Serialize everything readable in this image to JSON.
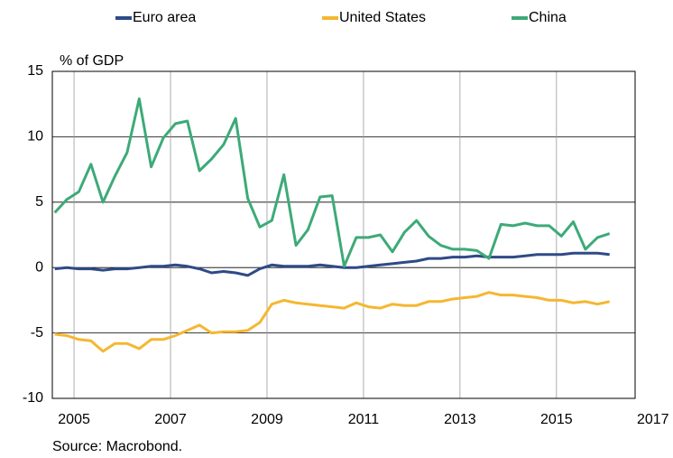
{
  "chart_data": {
    "type": "line",
    "y_label": "% of GDP",
    "source": "Source: Macrobond.",
    "x": [
      2004.6,
      2004.85,
      2005.1,
      2005.35,
      2005.6,
      2005.85,
      2006.1,
      2006.35,
      2006.6,
      2006.85,
      2007.1,
      2007.35,
      2007.6,
      2007.85,
      2008.1,
      2008.35,
      2008.6,
      2008.85,
      2009.1,
      2009.35,
      2009.6,
      2009.85,
      2010.1,
      2010.35,
      2010.6,
      2010.85,
      2011.1,
      2011.35,
      2011.6,
      2011.85,
      2012.1,
      2012.35,
      2012.6,
      2012.85,
      2013.1,
      2013.35,
      2013.6,
      2013.85,
      2014.1,
      2014.35,
      2014.6,
      2014.85,
      2015.1,
      2015.35,
      2015.6,
      2015.85,
      2016.1
    ],
    "series": [
      {
        "name": "Euro area",
        "color": "#2e4a87",
        "values": [
          -0.1,
          0.0,
          -0.1,
          -0.1,
          -0.2,
          -0.1,
          -0.1,
          0.0,
          0.1,
          0.1,
          0.2,
          0.1,
          -0.1,
          -0.4,
          -0.3,
          -0.4,
          -0.6,
          -0.1,
          0.2,
          0.1,
          0.1,
          0.1,
          0.2,
          0.1,
          0.0,
          0.0,
          0.1,
          0.2,
          0.3,
          0.4,
          0.5,
          0.7,
          0.7,
          0.8,
          0.8,
          0.9,
          0.8,
          0.8,
          0.8,
          0.9,
          1.0,
          1.0,
          1.0,
          1.1,
          1.1,
          1.1,
          1.0
        ]
      },
      {
        "name": "United States",
        "color": "#f5b731",
        "values": [
          -5.1,
          -5.2,
          -5.5,
          -5.6,
          -6.4,
          -5.8,
          -5.8,
          -6.2,
          -5.5,
          -5.5,
          -5.2,
          -4.8,
          -4.4,
          -5.0,
          -4.9,
          -4.9,
          -4.8,
          -4.2,
          -2.8,
          -2.5,
          -2.7,
          -2.8,
          -2.9,
          -3.0,
          -3.1,
          -2.7,
          -3.0,
          -3.1,
          -2.8,
          -2.9,
          -2.9,
          -2.6,
          -2.6,
          -2.4,
          -2.3,
          -2.2,
          -1.9,
          -2.1,
          -2.1,
          -2.2,
          -2.3,
          -2.5,
          -2.5,
          -2.7,
          -2.6,
          -2.8,
          -2.6
        ]
      },
      {
        "name": "China",
        "color": "#3daa78",
        "values": [
          4.2,
          5.2,
          5.8,
          7.9,
          5.0,
          7.0,
          8.8,
          12.9,
          7.7,
          9.9,
          11.0,
          11.2,
          7.4,
          8.3,
          9.4,
          11.4,
          5.3,
          3.1,
          3.6,
          7.1,
          1.7,
          2.9,
          5.4,
          5.5,
          0.1,
          2.3,
          2.3,
          2.5,
          1.2,
          2.7,
          3.6,
          2.4,
          1.7,
          1.4,
          1.4,
          1.3,
          0.7,
          3.3,
          3.2,
          3.4,
          3.2,
          3.2,
          2.4,
          3.5,
          1.4,
          2.3,
          2.6
        ]
      }
    ],
    "xlim": [
      2004.55,
      2016.63
    ],
    "xticks": [
      2005,
      2007,
      2009,
      2011,
      2013,
      2015,
      2017
    ],
    "ylim": [
      -10,
      15
    ],
    "yticks": [
      -10,
      -5,
      0,
      5,
      10,
      15
    ],
    "grid": true,
    "legend": "top"
  }
}
